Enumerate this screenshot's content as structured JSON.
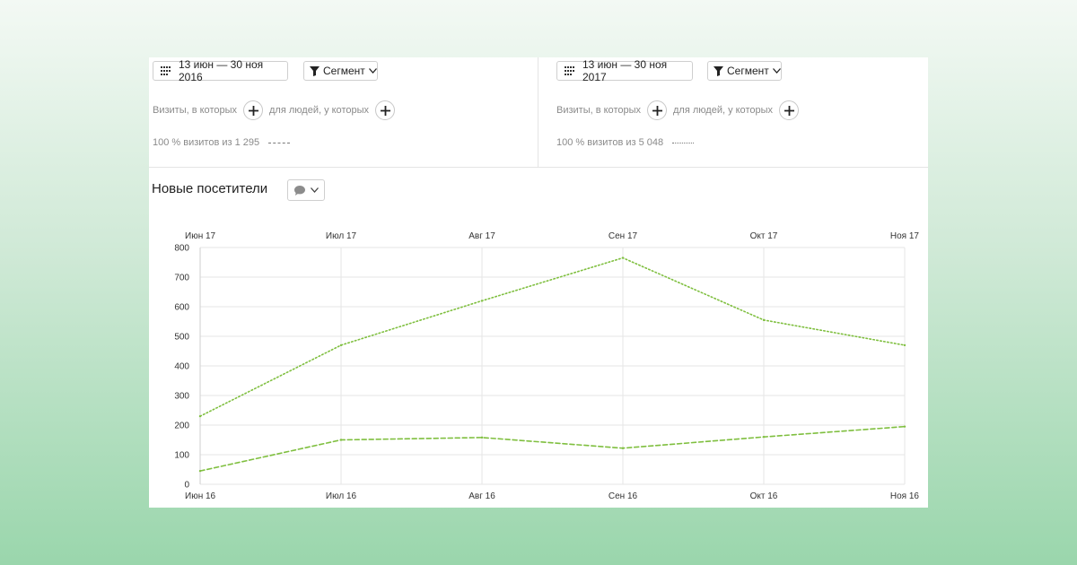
{
  "segments": [
    {
      "date_range": "13 июн — 30 ноя 2016",
      "segment_label": "Сегмент",
      "visits_label": "Визиты, в которых",
      "people_label": "для людей, у которых",
      "summary": "100 % визитов из 1 295",
      "line_style": "dashed"
    },
    {
      "date_range": "13 июн — 30 ноя 2017",
      "segment_label": "Сегмент",
      "visits_label": "Визиты, в которых",
      "people_label": "для людей, у которых",
      "summary": "100 % визитов из 5 048",
      "line_style": "dotted"
    }
  ],
  "metric": {
    "title": "Новые посетители",
    "selector_icon": "speech-bubble-icon"
  },
  "colors": {
    "series": "#7fbf3f",
    "grid": "#e6e6e6"
  },
  "chart_data": {
    "type": "line",
    "y_ticks": [
      0,
      100,
      200,
      300,
      400,
      500,
      600,
      700,
      800
    ],
    "ylim": [
      0,
      800
    ],
    "grid": true,
    "x_top_labels": [
      "Июн 17",
      "Июл 17",
      "Авг 17",
      "Сен 17",
      "Окт 17",
      "Ноя 17"
    ],
    "x_bottom_labels": [
      "Июн 16",
      "Июл 16",
      "Авг 16",
      "Сен 16",
      "Окт 16",
      "Ноя 16"
    ],
    "series": [
      {
        "period": "2017",
        "style": "dotted",
        "values": [
          230,
          470,
          620,
          765,
          555,
          470
        ]
      },
      {
        "period": "2016",
        "style": "dashed",
        "values": [
          45,
          150,
          158,
          122,
          160,
          195
        ]
      }
    ]
  }
}
